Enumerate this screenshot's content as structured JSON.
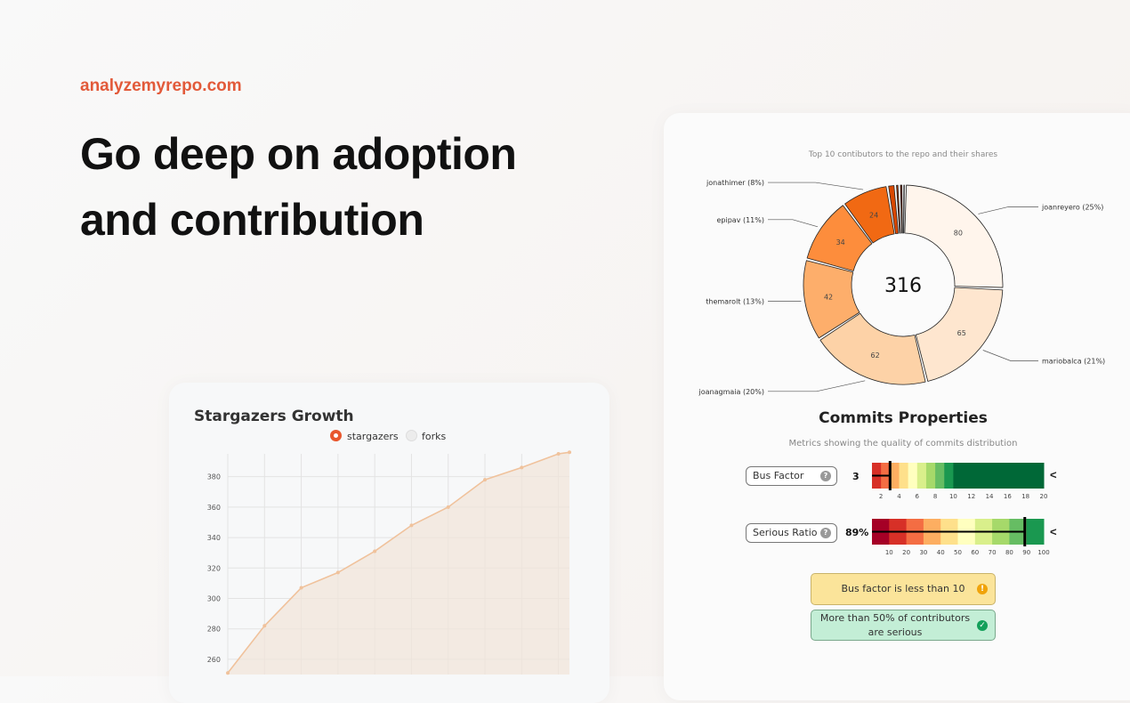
{
  "hero": {
    "brand": "analyzemyrepo.com",
    "headline_line1": "Go deep on adoption",
    "headline_line2": "and contribution"
  },
  "contributors_chart": {
    "caption": "Top 10 contibutors to the repo and their shares",
    "total": "316",
    "slices": [
      {
        "name": "joanreyero",
        "value": 80,
        "label": "joanreyero (25%)",
        "color": "#fff5ec"
      },
      {
        "name": "mariobalca",
        "value": 65,
        "label": "mariobalca (21%)",
        "color": "#fee6cf"
      },
      {
        "name": "joanagmaia",
        "value": 62,
        "label": "joanagmaia (20%)",
        "color": "#fdd2a7"
      },
      {
        "name": "themarolt",
        "value": 42,
        "label": "themarolt (13%)",
        "color": "#fdae6b"
      },
      {
        "name": "epipav",
        "value": 34,
        "label": "epipav (11%)",
        "color": "#fd8d3c"
      },
      {
        "name": "jonathimer",
        "value": 24,
        "label": "jonathimer (8%)",
        "color": "#f16913"
      },
      {
        "name": "c7",
        "value": 4,
        "label": "",
        "color": "#d94801"
      },
      {
        "name": "c8",
        "value": 2,
        "label": "",
        "color": "#a63603"
      },
      {
        "name": "c9",
        "value": 2,
        "label": "",
        "color": "#7f2704"
      },
      {
        "name": "c10",
        "value": 1,
        "label": "",
        "color": "#6b2003"
      }
    ]
  },
  "commits_properties": {
    "title": "Commits Properties",
    "subtitle": "Metrics showing the quality of commits distribution",
    "bus_factor": {
      "label": "Bus Factor",
      "value_text": "3",
      "value": 3,
      "scale_min": 1,
      "scale_max": 20,
      "ticks": [
        "2",
        "4",
        "6",
        "8",
        "10",
        "12",
        "14",
        "16",
        "18",
        "20"
      ],
      "band_colors": [
        "#d73027",
        "#f46d43",
        "#fdae61",
        "#fee08b",
        "#ffffbf",
        "#d9ef8b",
        "#a6d96a",
        "#66bd63",
        "#1a9850",
        "#006837"
      ]
    },
    "serious_ratio": {
      "label": "Serious Ratio",
      "value_text": "89%",
      "value": 89,
      "scale_min": 0,
      "scale_max": 100,
      "ticks": [
        "10",
        "20",
        "30",
        "40",
        "50",
        "60",
        "70",
        "80",
        "90",
        "100"
      ],
      "band_colors": [
        "#a50026",
        "#d73027",
        "#f46d43",
        "#fdae61",
        "#fee08b",
        "#ffffbf",
        "#d9ef8b",
        "#a6d96a",
        "#66bd63",
        "#1a9850"
      ]
    },
    "alerts": {
      "warning": "Bus factor is less than 10",
      "success": "More than 50% of contributors are serious"
    }
  },
  "stargazers_chart": {
    "title": "Stargazers Growth",
    "legend": [
      {
        "name": "stargazers",
        "active": true,
        "color": "#e8572e"
      },
      {
        "name": "forks",
        "active": false,
        "color": "#e5e5e5"
      }
    ]
  },
  "chart_data": [
    {
      "type": "pie",
      "title": "Top 10 contibutors to the repo and their shares",
      "categories": [
        "joanreyero",
        "mariobalca",
        "joanagmaia",
        "themarolt",
        "epipav",
        "jonathimer",
        "",
        "",
        "",
        ""
      ],
      "values": [
        80,
        65,
        62,
        42,
        34,
        24,
        4,
        2,
        2,
        1
      ],
      "total": 316
    },
    {
      "type": "area",
      "title": "Stargazers Growth",
      "series": [
        {
          "name": "stargazers",
          "values": [
            251,
            282,
            307,
            317,
            331,
            348,
            360,
            378,
            386,
            395,
            396
          ]
        }
      ],
      "x_index": [
        0,
        1,
        2,
        3,
        4,
        5,
        6,
        7,
        8,
        9,
        9.3
      ],
      "ylim": [
        250,
        395
      ],
      "yticks": [
        260,
        280,
        300,
        320,
        340,
        360,
        380
      ],
      "grid": true,
      "legend": "top-center"
    }
  ]
}
